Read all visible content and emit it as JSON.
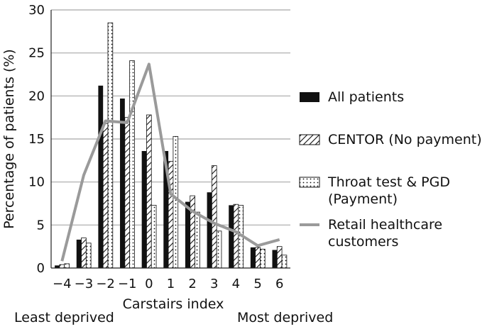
{
  "chart_data": {
    "type": "bar",
    "title": "",
    "xlabel": "Carstairs index",
    "ylabel": "Percentage of patients (%)",
    "categories": [
      "-4",
      "-3",
      "-2",
      "-1",
      "0",
      "1",
      "2",
      "3",
      "4",
      "5",
      "6"
    ],
    "ylim": [
      0,
      30
    ],
    "yticks": [
      "0",
      "5",
      "10",
      "15",
      "20",
      "25",
      "30"
    ],
    "grid": true,
    "legend_position": "right",
    "series": [
      {
        "name": "All patients",
        "type": "bar",
        "pattern": "solid",
        "color": "#111111",
        "values": [
          0.3,
          3.3,
          21.2,
          19.7,
          13.6,
          13.6,
          7.7,
          8.8,
          7.3,
          2.4,
          2.1
        ]
      },
      {
        "name": "CENTOR (No payment)",
        "type": "bar",
        "pattern": "hatched",
        "color": "#111111",
        "values": [
          0.4,
          3.5,
          16.8,
          17.5,
          17.8,
          12.4,
          8.4,
          11.9,
          7.4,
          2.4,
          2.5
        ]
      },
      {
        "name": "Throat test & PGD (Payment)",
        "type": "bar",
        "pattern": "dotted",
        "color": "#111111",
        "values": [
          0.5,
          2.9,
          28.5,
          24.1,
          7.3,
          15.3,
          6.5,
          4.3,
          7.3,
          2.2,
          1.5
        ]
      },
      {
        "name": "Retail healthcare customers",
        "type": "line",
        "color": "#9a9a9a",
        "values": [
          0.8,
          10.8,
          17.1,
          16.9,
          23.7,
          8.6,
          6.6,
          5.2,
          4.2,
          2.6,
          3.3
        ]
      }
    ],
    "annotations": {
      "left": "Least deprived",
      "right": "Most deprived"
    }
  },
  "legend": [
    {
      "label": "All patients",
      "swatch": "solid"
    },
    {
      "label": "CENTOR (No payment)",
      "swatch": "hatched"
    },
    {
      "label": "Throat test & PGD",
      "label2": "(Payment)",
      "swatch": "dotted"
    },
    {
      "label": "Retail healthcare",
      "label2": "customers",
      "swatch": "line"
    }
  ]
}
